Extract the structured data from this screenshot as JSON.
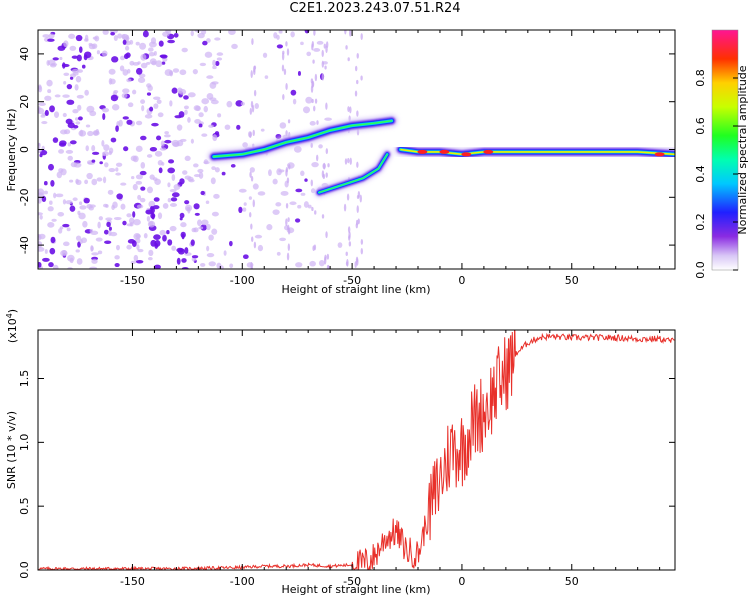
{
  "page_title": "C2E1.2023.243.07.51.R24",
  "colors": {
    "snr_line": "#e8302a",
    "axis": "#000000",
    "background": "#ffffff",
    "noise_dots": "#7a1fe0"
  },
  "chart_data": [
    {
      "type": "heatmap",
      "title": "C2E1.2023.243.07.51.R24",
      "xlabel": "Height of straight line (km)",
      "ylabel": "Frequency (Hz)",
      "xlim": [
        -193,
        97
      ],
      "ylim": [
        -50,
        50
      ],
      "x_ticks": [
        -150,
        -100,
        -50,
        0,
        50
      ],
      "x_tick_labels": [
        "-150",
        "-100",
        "-50",
        "0",
        "50"
      ],
      "y_ticks": [
        -40,
        -20,
        0,
        20,
        40
      ],
      "y_tick_labels": [
        "-40",
        "-20",
        "0",
        "20",
        "40"
      ],
      "grid": false,
      "colorbar": {
        "label": "Normalized spectral amplitude",
        "range": [
          0,
          1
        ],
        "ticks": [
          0.0,
          0.2,
          0.4,
          0.6,
          0.8
        ],
        "tick_labels": [
          "0.0",
          "0.2",
          "0.4",
          "0.6",
          "0.8"
        ],
        "colormap": "rainbow (white-purple-blue-cyan-green-yellow-red-magenta)"
      },
      "ridges": [
        {
          "x": [
            -113,
            -100,
            -90,
            -80,
            -70,
            -60,
            -50,
            -40,
            -32
          ],
          "y": [
            -3,
            -2,
            0,
            3,
            5,
            8,
            10,
            11,
            12
          ]
        },
        {
          "x": [
            -65,
            -55,
            -45,
            -38,
            -34
          ],
          "y": [
            -18,
            -15,
            -12,
            -8,
            -2
          ]
        },
        {
          "x": [
            -28,
            -20,
            -10,
            0,
            10,
            20,
            40,
            60,
            80,
            97
          ],
          "y": [
            0,
            -1,
            -1,
            -2,
            -1,
            -1,
            -1,
            -1,
            -1,
            -2
          ]
        }
      ],
      "noise_region": {
        "x_range": [
          -193,
          -105
        ],
        "y_range": [
          -50,
          50
        ]
      }
    },
    {
      "type": "line",
      "xlabel": "Height of straight line (km)",
      "ylabel": "SNR (10 * v/v)",
      "y_scale_note": "(x10",
      "y_scale_exp": "4",
      "y_scale_close": ")",
      "xlim": [
        -193,
        97
      ],
      "ylim": [
        0,
        1.88
      ],
      "x_ticks": [
        -150,
        -100,
        -50,
        0,
        50
      ],
      "x_tick_labels": [
        "-150",
        "-100",
        "-50",
        "0",
        "50"
      ],
      "y_ticks": [
        0.0,
        0.5,
        1.0,
        1.5
      ],
      "y_tick_labels": [
        "0.0",
        "0.5",
        "1.0",
        "1.5"
      ],
      "grid": false,
      "series": [
        {
          "x": [
            -193,
            -160,
            -130,
            -100,
            -90,
            -80,
            -70,
            -60,
            -50,
            -45,
            -40,
            -35,
            -30,
            -25,
            -20,
            -15,
            -10,
            -5,
            0,
            5,
            10,
            15,
            20,
            25,
            30,
            35,
            40,
            50,
            60,
            70,
            80,
            90,
            97
          ],
          "y": [
            0.01,
            0.01,
            0.01,
            0.02,
            0.03,
            0.03,
            0.04,
            0.03,
            0.04,
            0.05,
            0.1,
            0.25,
            0.3,
            0.15,
            0.12,
            0.45,
            0.7,
            0.95,
            0.95,
            1.15,
            1.25,
            1.4,
            1.55,
            1.7,
            1.78,
            1.82,
            1.83,
            1.82,
            1.82,
            1.82,
            1.81,
            1.81,
            1.79
          ]
        }
      ]
    }
  ]
}
